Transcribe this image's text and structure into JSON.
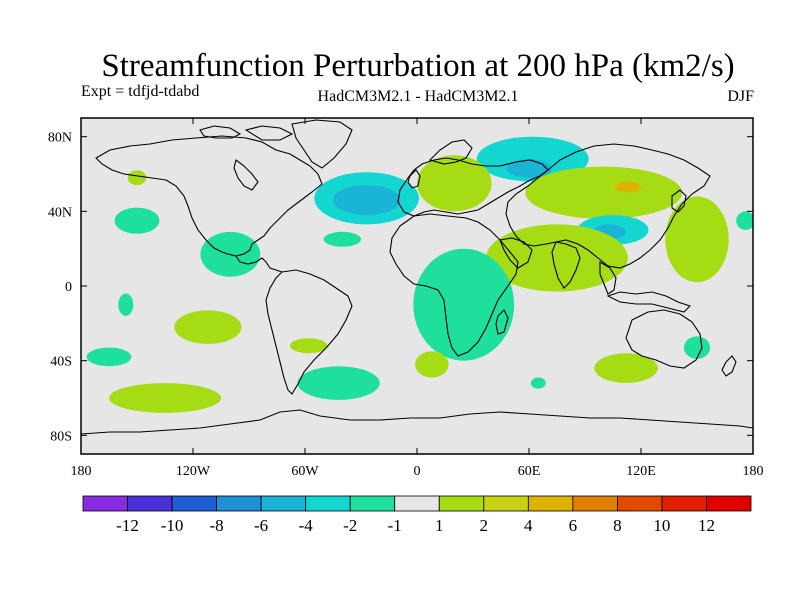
{
  "title": "Streamfunction Perturbation at 200 hPa (km2/s)",
  "left_label": "Expt = tdfjd-tdabd",
  "center_label": "HadCM3M2.1 - HadCM3M2.1",
  "right_label": "DJF",
  "colors": {
    "background": "#e6e6e6",
    "coast": "#000000"
  },
  "chart_data": {
    "type": "heatmap",
    "title": "Streamfunction Perturbation at 200 hPa (km2/s)",
    "xlim": [
      -180,
      180
    ],
    "ylim": [
      -90,
      90
    ],
    "x_ticks": [
      {
        "value": -180,
        "label": "180"
      },
      {
        "value": -120,
        "label": "120W"
      },
      {
        "value": -60,
        "label": "60W"
      },
      {
        "value": 0,
        "label": "0"
      },
      {
        "value": 60,
        "label": "60E"
      },
      {
        "value": 120,
        "label": "120E"
      },
      {
        "value": 180,
        "label": "180"
      }
    ],
    "y_ticks": [
      {
        "value": 80,
        "label": "80N"
      },
      {
        "value": 40,
        "label": "40N"
      },
      {
        "value": 0,
        "label": "0"
      },
      {
        "value": -40,
        "label": "40S"
      },
      {
        "value": -80,
        "label": "80S"
      }
    ],
    "colorbar": {
      "labels": [
        "-12",
        "-10",
        "-8",
        "-6",
        "-4",
        "-2",
        "-1",
        "1",
        "2",
        "4",
        "6",
        "8",
        "10",
        "12"
      ],
      "colors": [
        "#8a2be2",
        "#4b2fd9",
        "#1f5fd6",
        "#1e90d8",
        "#19b4d6",
        "#14d6d0",
        "#1ee09c",
        "#e6e6e6",
        "#a5dc14",
        "#c8d214",
        "#dcb400",
        "#e08000",
        "#e04b00",
        "#e01e00",
        "#e00000"
      ]
    },
    "regions": [
      {
        "name": "north-atlantic-low",
        "lon": -27,
        "lat": 47,
        "rlon": 28,
        "rlat": 14,
        "level": "-2"
      },
      {
        "name": "north-atlantic-low-core",
        "lon": -27,
        "lat": 46,
        "rlon": 18,
        "rlat": 8,
        "level": "-4"
      },
      {
        "name": "siberia-low",
        "lon": 62,
        "lat": 68,
        "rlon": 30,
        "rlat": 12,
        "level": "-2"
      },
      {
        "name": "siberia-low-core",
        "lon": 60,
        "lat": 63,
        "rlon": 12,
        "rlat": 5,
        "level": "-4"
      },
      {
        "name": "europe-high",
        "lon": 20,
        "lat": 55,
        "rlon": 20,
        "rlat": 15,
        "level": "1"
      },
      {
        "name": "asia-high",
        "lon": 100,
        "lat": 50,
        "rlon": 42,
        "rlat": 14,
        "level": "1"
      },
      {
        "name": "asia-high-core",
        "lon": 113,
        "lat": 53,
        "rlon": 7,
        "rlat": 3,
        "level": "4"
      },
      {
        "name": "tibet-low",
        "lon": 105,
        "lat": 30,
        "rlon": 19,
        "rlat": 8,
        "level": "-2"
      },
      {
        "name": "tibet-low-core",
        "lon": 103,
        "lat": 29,
        "rlon": 9,
        "rlat": 4,
        "level": "-4"
      },
      {
        "name": "pacific-high",
        "lon": 150,
        "lat": 25,
        "rlon": 17,
        "rlat": 23,
        "level": "1"
      },
      {
        "name": "india-arabia-high",
        "lon": 75,
        "lat": 15,
        "rlon": 38,
        "rlat": 18,
        "level": "1"
      },
      {
        "name": "africa-low",
        "lon": 25,
        "lat": -10,
        "rlon": 27,
        "rlat": 30,
        "level": "-1"
      },
      {
        "name": "north-pacific-low",
        "lon": -150,
        "lat": 35,
        "rlon": 12,
        "rlat": 7,
        "level": "-1"
      },
      {
        "name": "central-america-low",
        "lon": -100,
        "lat": 17,
        "rlon": 16,
        "rlat": 12,
        "level": "-1"
      },
      {
        "name": "caribbean-low",
        "lon": -40,
        "lat": 25,
        "rlon": 10,
        "rlat": 4,
        "level": "-1"
      },
      {
        "name": "mid-pacific-low",
        "lon": -156,
        "lat": -10,
        "rlon": 4,
        "rlat": 6,
        "level": "-1"
      },
      {
        "name": "south-pacific-high",
        "lon": -112,
        "lat": -22,
        "rlon": 18,
        "rlat": 9,
        "level": "1"
      },
      {
        "name": "south-america-high",
        "lon": -58,
        "lat": -32,
        "rlon": 10,
        "rlat": 4,
        "level": "1"
      },
      {
        "name": "south-atlantic-low",
        "lon": -42,
        "lat": -52,
        "rlon": 22,
        "rlat": 9,
        "level": "-1"
      },
      {
        "name": "southern-pacific-high",
        "lon": -135,
        "lat": -60,
        "rlon": 30,
        "rlat": 8,
        "level": "1"
      },
      {
        "name": "se-pacific-low",
        "lon": -165,
        "lat": -38,
        "rlon": 12,
        "rlat": 5,
        "level": "-1"
      },
      {
        "name": "south-africa-high",
        "lon": 8,
        "lat": -42,
        "rlon": 9,
        "rlat": 7,
        "level": "1"
      },
      {
        "name": "indian-ocean-low",
        "lon": 65,
        "lat": -52,
        "rlon": 4,
        "rlat": 3,
        "level": "-1"
      },
      {
        "name": "australia-high",
        "lon": 112,
        "lat": -44,
        "rlon": 17,
        "rlat": 8,
        "level": "1"
      },
      {
        "name": "new-zealand-low",
        "lon": 150,
        "lat": -33,
        "rlon": 7,
        "rlat": 6,
        "level": "-1"
      },
      {
        "name": "east-pacific-low",
        "lon": 176,
        "lat": 35,
        "rlon": 5,
        "rlat": 5,
        "level": "-1"
      },
      {
        "name": "canada-low",
        "lon": -150,
        "lat": 58,
        "rlon": 5,
        "rlat": 4,
        "level": "1"
      }
    ]
  }
}
